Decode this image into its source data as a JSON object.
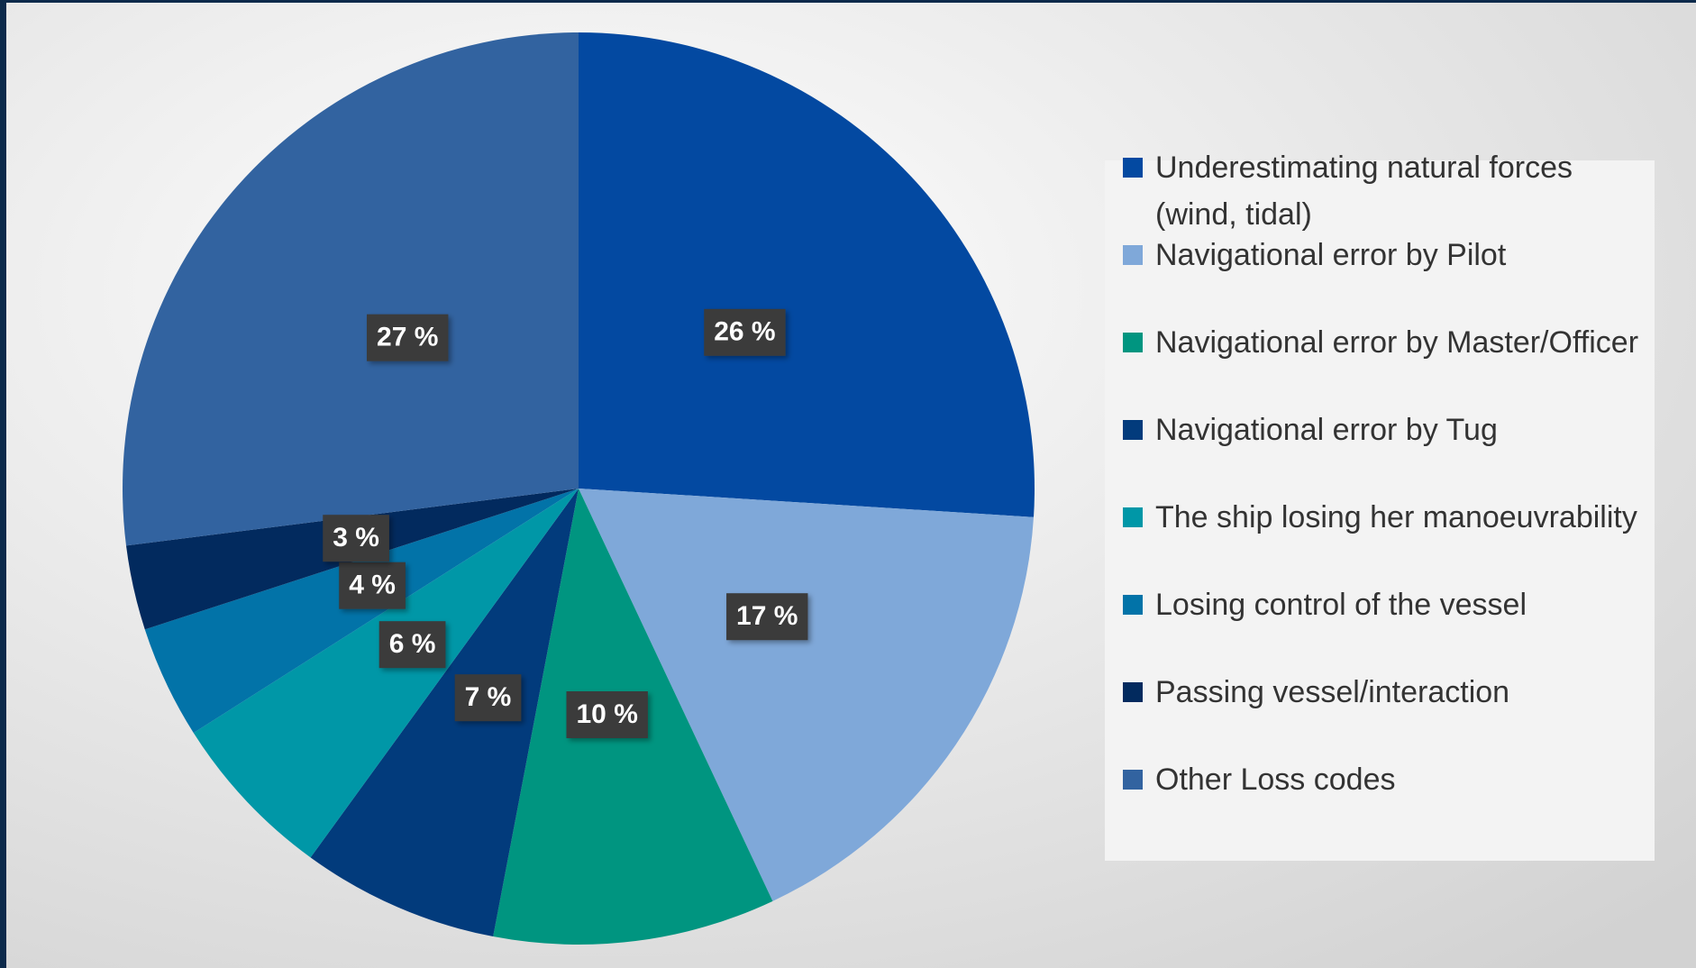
{
  "chart_data": {
    "type": "pie",
    "categories": [
      "Underestimating natural forces (wind, tidal)",
      "Navigational error by Pilot",
      "Navigational error by Master/Officer",
      "Navigational error by Tug",
      "The ship losing her manoeuvrability",
      "Losing control of the vessel",
      "Passing vessel/interaction",
      "Other Loss codes"
    ],
    "values": [
      26,
      17,
      10,
      7,
      6,
      4,
      3,
      27
    ],
    "value_labels": [
      "26 %",
      "17 %",
      "10 %",
      "7 %",
      "6 %",
      "4 %",
      "3 %",
      "27 %"
    ],
    "colors": [
      "#0349a1",
      "#7fa8d9",
      "#009580",
      "#023b7c",
      "#0097a7",
      "#0273a8",
      "#022a5e",
      "#3263a0"
    ],
    "legend": "right"
  }
}
